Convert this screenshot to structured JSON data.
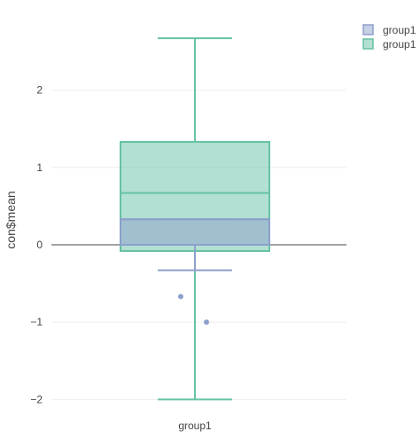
{
  "chart_data": {
    "type": "box",
    "ylabel": "con$mean",
    "xlabel": "",
    "categories": [
      "group1"
    ],
    "ylim": [
      -2.3,
      2.85
    ],
    "yticks": [
      -2,
      -1,
      0,
      1,
      2
    ],
    "ytick_labels": [
      "−2",
      "−1",
      "0",
      "1",
      "2"
    ],
    "grid": true,
    "zero_line": true,
    "legend": {
      "position": "top-right",
      "entries": [
        "group1",
        "group1"
      ]
    },
    "series": [
      {
        "name": "group1",
        "color": "#8da0cb",
        "box": {
          "q1": 0,
          "median": 0.33,
          "q3": 0.33,
          "lower_whisker": -0.33,
          "upper_whisker": 0.33
        },
        "outliers": [
          -0.67,
          -1.0
        ]
      },
      {
        "name": "group1",
        "color": "#66c2a5",
        "box": {
          "q1": -0.08,
          "median": 0.67,
          "q3": 1.33,
          "lower_whisker": -2.0,
          "upper_whisker": 2.67
        },
        "outliers": []
      }
    ]
  }
}
